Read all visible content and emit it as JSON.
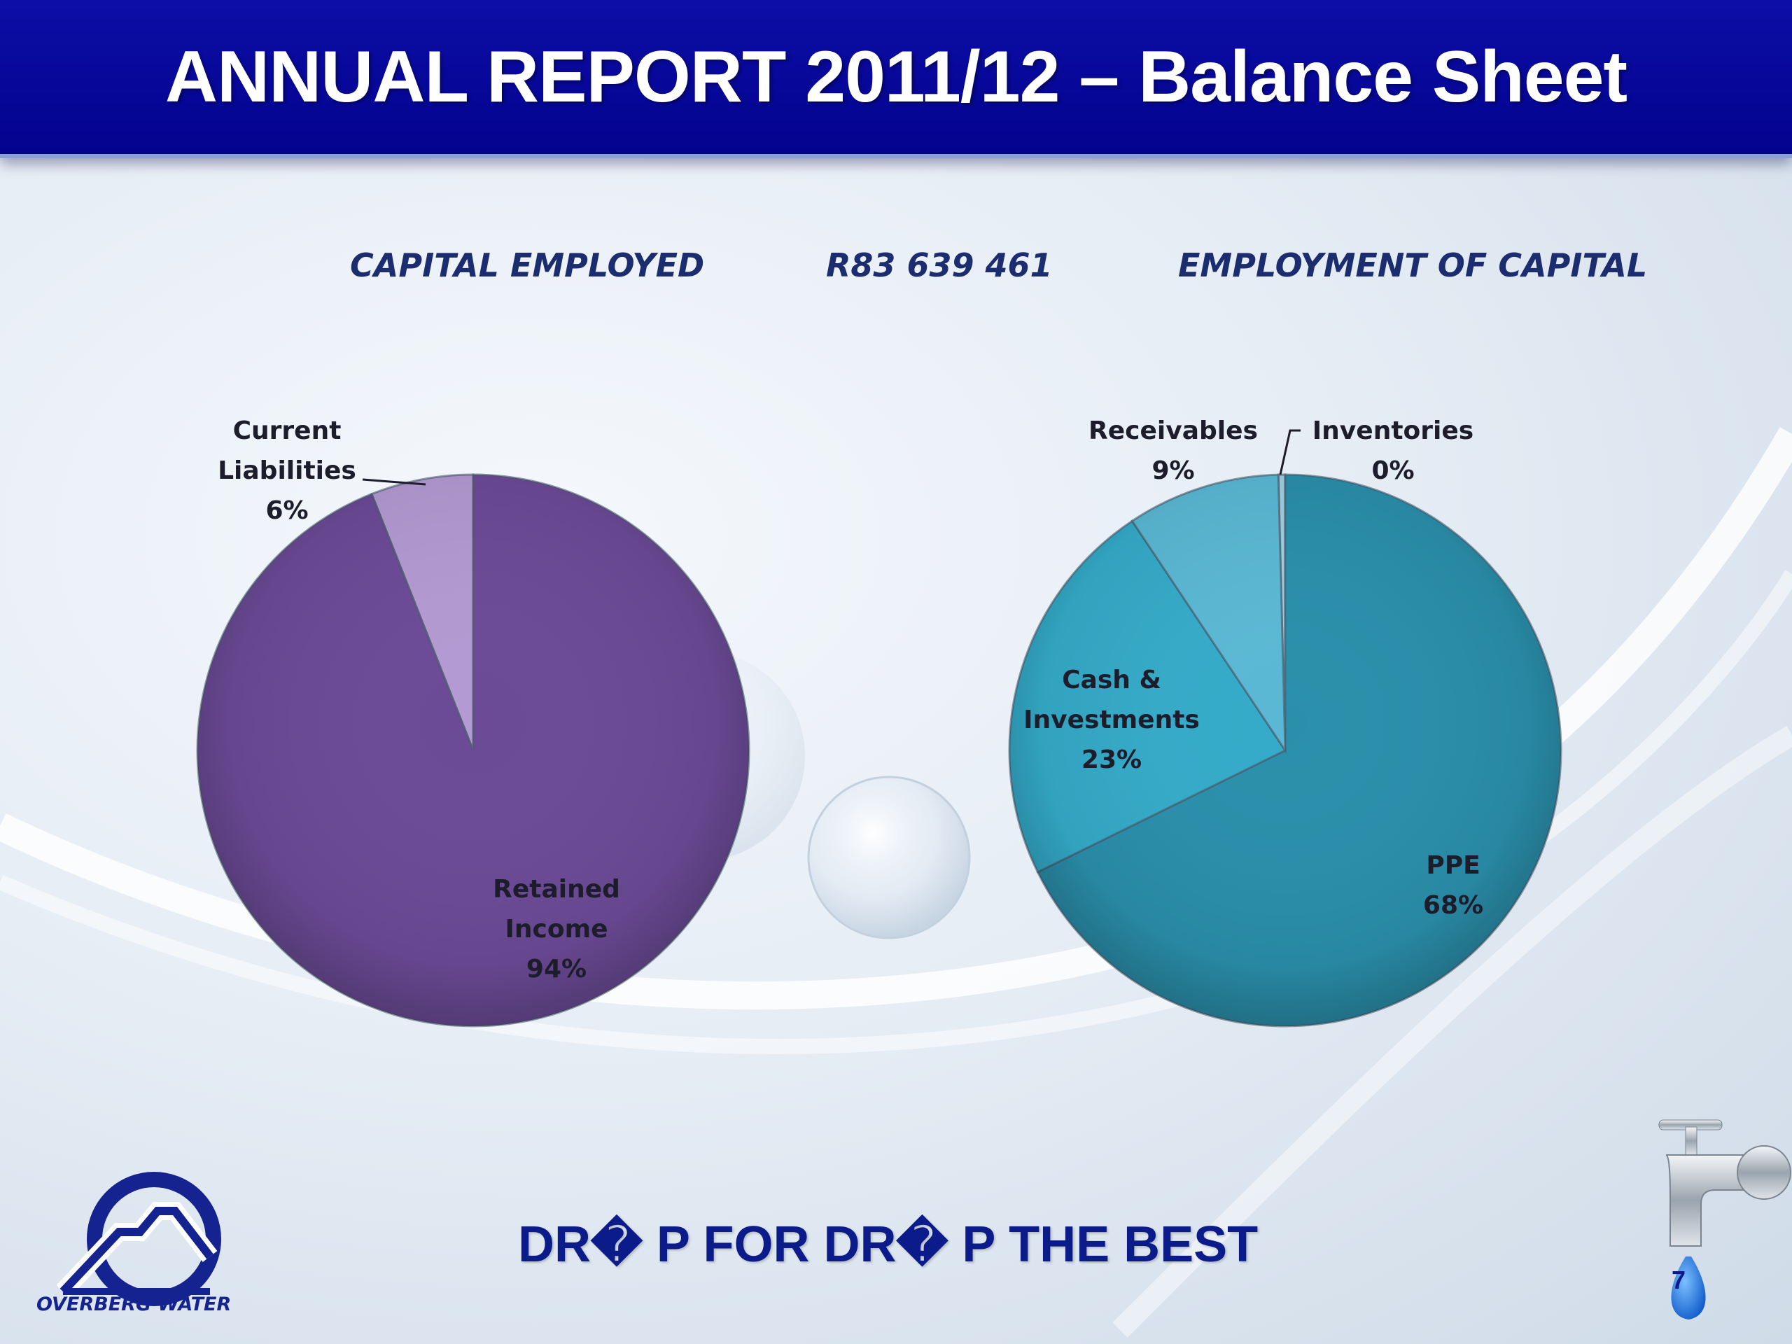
{
  "slide": {
    "title": "ANNUAL REPORT 2011/12 – Balance Sheet",
    "subtitle_left": "CAPITAL EMPLOYED",
    "subtitle_center": "R83 639 461",
    "subtitle_right": "EMPLOYMENT OF CAPITAL",
    "slogan": "DR� P FOR DR� P THE BEST",
    "logo_text": "OVERBERG WATER",
    "page_number": "7",
    "colors": {
      "header": "#0808a0",
      "text_dark": "#1b2d6e",
      "purple_main": "#6b4a96",
      "purple_light": "#b39ad2",
      "teal_main": "#2a8fab",
      "teal_mid": "#34abc9",
      "teal_light": "#5ab8d4"
    }
  },
  "chart_data": [
    {
      "type": "pie",
      "title": "CAPITAL EMPLOYED",
      "slices": [
        {
          "label_lines": [
            "Current",
            "Liabilities"
          ],
          "value": 6,
          "value_label": "6%",
          "color": "#b39ad2"
        },
        {
          "label_lines": [
            "Retained",
            "Income"
          ],
          "value": 94,
          "value_label": "94%",
          "color": "#6b4a96"
        }
      ]
    },
    {
      "type": "pie",
      "title": "EMPLOYMENT OF CAPITAL",
      "slices": [
        {
          "label_lines": [
            "Inventories"
          ],
          "value": 0.4,
          "value_label": "0%",
          "color": "#9fcfe0"
        },
        {
          "label_lines": [
            "PPE"
          ],
          "value": 68,
          "value_label": "68%",
          "color": "#2a8fab"
        },
        {
          "label_lines": [
            "Cash &",
            "Investments"
          ],
          "value": 23,
          "value_label": "23%",
          "color": "#34abc9"
        },
        {
          "label_lines": [
            "Receivables"
          ],
          "value": 9,
          "value_label": "9%",
          "color": "#5ab8d4"
        }
      ]
    }
  ]
}
